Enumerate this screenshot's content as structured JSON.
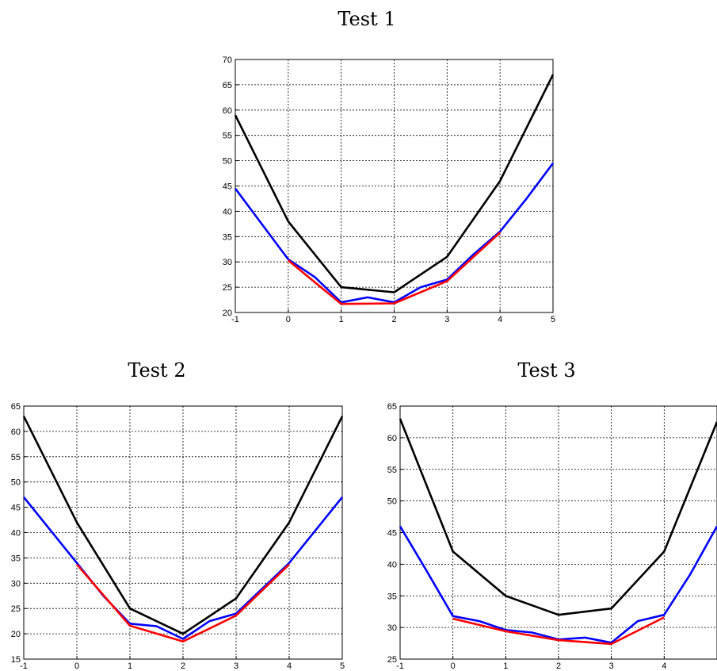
{
  "colors": {
    "black": "#000000",
    "blue": "#0000ff",
    "red": "#ff0000",
    "grid": "#000000"
  },
  "chart_data": [
    {
      "type": "line",
      "title": "Test 1",
      "xlim": [
        -1,
        5
      ],
      "ylim": [
        20,
        70
      ],
      "xticks": [
        "-1",
        "0",
        "1",
        "2",
        "3",
        "4",
        "5"
      ],
      "yticks": [
        "20",
        "25",
        "30",
        "35",
        "40",
        "45",
        "50",
        "55",
        "60",
        "65",
        "70"
      ],
      "grid": true,
      "series": [
        {
          "color": "black",
          "x": [
            -1,
            0,
            1,
            2,
            3,
            4,
            5
          ],
          "y": [
            59,
            38,
            25,
            24,
            31,
            46,
            67
          ]
        },
        {
          "color": "blue",
          "x": [
            -1,
            -0.5,
            0,
            0.5,
            1,
            1.5,
            2,
            2.5,
            3,
            3.5,
            4,
            4.5,
            5
          ],
          "y": [
            44.5,
            37.5,
            30.5,
            27,
            22,
            23,
            22,
            25,
            26.5,
            31.5,
            36,
            42.5,
            49.5
          ]
        },
        {
          "color": "red",
          "x": [
            0,
            1,
            2,
            3,
            4
          ],
          "y": [
            30.3,
            21.7,
            21.8,
            26.2,
            35.8
          ]
        }
      ]
    },
    {
      "type": "line",
      "title": "Test 2",
      "xlim": [
        -1,
        5
      ],
      "ylim": [
        15,
        65
      ],
      "xticks": [
        "-1",
        "0",
        "1",
        "2",
        "3",
        "4",
        "5"
      ],
      "yticks": [
        "15",
        "20",
        "25",
        "30",
        "35",
        "40",
        "45",
        "50",
        "55",
        "60",
        "65"
      ],
      "grid": true,
      "series": [
        {
          "color": "black",
          "x": [
            -1,
            0,
            1,
            2,
            3,
            4,
            5
          ],
          "y": [
            63,
            42,
            25,
            20,
            27,
            42,
            63
          ]
        },
        {
          "color": "blue",
          "x": [
            -1,
            -0.5,
            0,
            0.5,
            1,
            1.5,
            2,
            2.5,
            3,
            3.5,
            4,
            4.5,
            5
          ],
          "y": [
            47,
            40.5,
            34,
            27.5,
            22,
            21.5,
            19,
            22.5,
            24,
            29,
            34,
            40.5,
            47
          ]
        },
        {
          "color": "red",
          "x": [
            0,
            1,
            2,
            3,
            4
          ],
          "y": [
            33.7,
            21.6,
            18.5,
            23.6,
            33.7
          ]
        }
      ]
    },
    {
      "type": "line",
      "title": "Test 3",
      "xlim": [
        -1,
        5
      ],
      "ylim": [
        25,
        65
      ],
      "xticks": [
        "-1",
        "0",
        "1",
        "2",
        "3",
        "4"
      ],
      "yticks": [
        "25",
        "30",
        "35",
        "40",
        "45",
        "50",
        "55",
        "60",
        "65"
      ],
      "grid": true,
      "series": [
        {
          "color": "black",
          "x": [
            -1,
            0,
            1,
            2,
            3,
            4,
            5
          ],
          "y": [
            63,
            42,
            35,
            32,
            33,
            42,
            62.5
          ]
        },
        {
          "color": "blue",
          "x": [
            -1,
            -0.5,
            0,
            0.5,
            1,
            1.5,
            2,
            2.5,
            3,
            3.5,
            4,
            4.5,
            5
          ],
          "y": [
            46,
            39,
            31.8,
            31,
            29.6,
            29.2,
            28.1,
            28.4,
            27.6,
            31,
            32,
            38.5,
            46
          ]
        },
        {
          "color": "red",
          "x": [
            0,
            1,
            2,
            3,
            4
          ],
          "y": [
            31.4,
            29.4,
            28,
            27.4,
            31.6
          ]
        }
      ]
    }
  ]
}
